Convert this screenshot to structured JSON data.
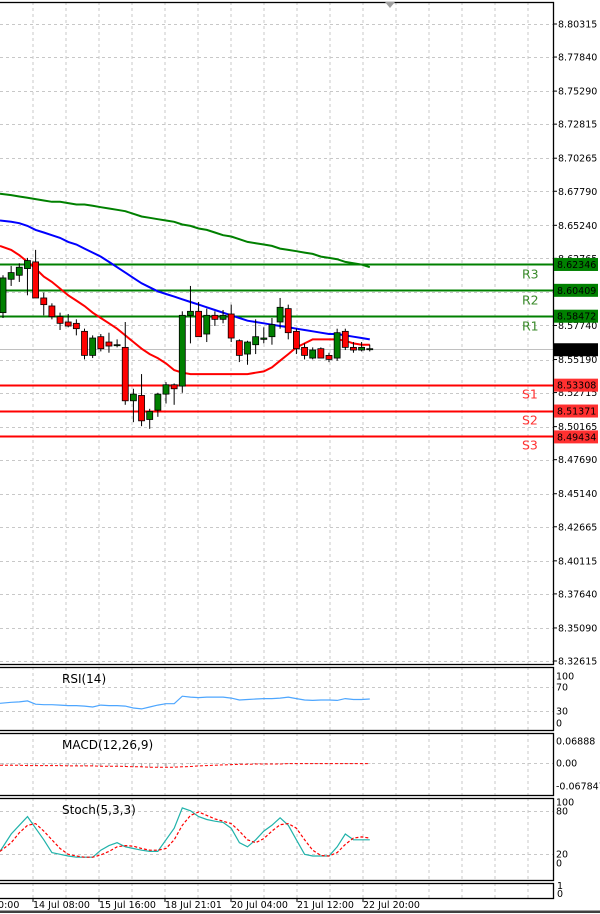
{
  "chart_data": {
    "type": "candlestick",
    "title": "",
    "layout": {
      "grid": true,
      "legend": "none"
    },
    "price_axis": {
      "ticks": [
        "8.80315",
        "8.77840",
        "8.75290",
        "8.72815",
        "8.70265",
        "8.67790",
        "8.65240",
        "8.62765",
        "8.60215",
        "8.57740",
        "8.55190",
        "8.52715",
        "8.50165",
        "8.47690",
        "8.45140",
        "8.42665",
        "8.40115",
        "8.37640",
        "8.35090",
        "8.32615"
      ],
      "range": [
        8.32615,
        8.80315
      ]
    },
    "time_axis": {
      "ticks": [
        "20:00",
        "14 Jul 08:00",
        "15 Jul 16:00",
        "18 Jul 21:01",
        "20 Jul 04:00",
        "21 Jul 12:00",
        "22 Jul 20:00"
      ]
    },
    "current_price": "8.55960",
    "levels": [
      {
        "name": "R3",
        "value": "8.62346",
        "type": "resistance",
        "color": "#008000"
      },
      {
        "name": "R2",
        "value": "8.60409",
        "type": "resistance",
        "color": "#008000"
      },
      {
        "name": "R1",
        "value": "8.58472",
        "type": "resistance",
        "color": "#008000"
      },
      {
        "name": "S1",
        "value": "8.53308",
        "type": "support",
        "color": "#ff0000"
      },
      {
        "name": "S2",
        "value": "8.51371",
        "type": "support",
        "color": "#ff0000"
      },
      {
        "name": "S3",
        "value": "8.49434",
        "type": "support",
        "color": "#ff0000"
      }
    ],
    "candles": [
      [
        8.587,
        8.615,
        8.583,
        8.613
      ],
      [
        8.612,
        8.622,
        8.607,
        8.617
      ],
      [
        8.615,
        8.624,
        8.61,
        8.621
      ],
      [
        8.62,
        8.628,
        8.6,
        8.626
      ],
      [
        8.625,
        8.634,
        8.598,
        8.598
      ],
      [
        8.598,
        8.602,
        8.585,
        8.593
      ],
      [
        8.592,
        8.594,
        8.582,
        8.584
      ],
      [
        8.584,
        8.587,
        8.574,
        8.579
      ],
      [
        8.58,
        8.586,
        8.576,
        8.577
      ],
      [
        8.579,
        8.582,
        8.57,
        8.575
      ],
      [
        8.573,
        8.575,
        8.552,
        8.555
      ],
      [
        8.555,
        8.57,
        8.553,
        8.568
      ],
      [
        8.569,
        8.571,
        8.558,
        8.56
      ],
      [
        8.565,
        8.572,
        8.557,
        8.562
      ],
      [
        8.563,
        8.567,
        8.561,
        8.563
      ],
      [
        8.561,
        8.58,
        8.518,
        8.521
      ],
      [
        8.521,
        8.53,
        8.505,
        8.526
      ],
      [
        8.525,
        8.541,
        8.502,
        8.506
      ],
      [
        8.507,
        8.515,
        8.5,
        8.513
      ],
      [
        8.514,
        8.527,
        8.509,
        8.526
      ],
      [
        8.526,
        8.535,
        8.519,
        8.533
      ],
      [
        8.533,
        8.534,
        8.518,
        8.53
      ],
      [
        8.532,
        8.588,
        8.527,
        8.585
      ],
      [
        8.585,
        8.607,
        8.564,
        8.588
      ],
      [
        8.588,
        8.595,
        8.569,
        8.569
      ],
      [
        8.571,
        8.59,
        8.565,
        8.585
      ],
      [
        8.585,
        8.588,
        8.577,
        8.582
      ],
      [
        8.582,
        8.589,
        8.579,
        8.585
      ],
      [
        8.586,
        8.593,
        8.565,
        8.568
      ],
      [
        8.566,
        8.567,
        8.55,
        8.555
      ],
      [
        8.556,
        8.566,
        8.548,
        8.565
      ],
      [
        8.563,
        8.582,
        8.556,
        8.569
      ],
      [
        8.567,
        8.576,
        8.564,
        8.568
      ],
      [
        8.569,
        8.583,
        8.563,
        8.578
      ],
      [
        8.58,
        8.598,
        8.575,
        8.591
      ],
      [
        8.59,
        8.593,
        8.567,
        8.572
      ],
      [
        8.573,
        8.575,
        8.556,
        8.56
      ],
      [
        8.561,
        8.564,
        8.552,
        8.555
      ],
      [
        8.553,
        8.561,
        8.552,
        8.559
      ],
      [
        8.56,
        8.561,
        8.553,
        8.553
      ],
      [
        8.555,
        8.557,
        8.55,
        8.552
      ],
      [
        8.553,
        8.575,
        8.551,
        8.572
      ],
      [
        8.573,
        8.575,
        8.559,
        8.561
      ],
      [
        8.561,
        8.565,
        8.557,
        8.559
      ],
      [
        8.559,
        8.565,
        8.558,
        8.561
      ],
      [
        8.56,
        8.563,
        8.558,
        8.56
      ]
    ],
    "ma_series": [
      {
        "name": "MA fast (red)",
        "color": "#ff0000",
        "values": [
          8.637,
          8.634,
          8.63,
          8.625,
          8.62,
          8.614,
          8.61,
          8.605,
          8.6,
          8.596,
          8.592,
          8.587,
          8.583,
          8.579,
          8.575,
          8.57,
          8.565,
          8.56,
          8.556,
          8.553,
          8.549,
          8.544,
          8.542,
          8.541,
          8.541,
          8.541,
          8.541,
          8.541,
          8.541,
          8.541,
          8.541,
          8.542,
          8.543,
          8.546,
          8.551,
          8.556,
          8.561,
          8.564,
          8.567,
          8.567,
          8.567,
          8.567,
          8.566,
          8.564,
          8.563,
          8.563
        ]
      },
      {
        "name": "MA medium (blue)",
        "color": "#0000ff",
        "values": [
          8.656,
          8.655,
          8.654,
          8.652,
          8.649,
          8.647,
          8.645,
          8.643,
          8.64,
          8.638,
          8.635,
          8.632,
          8.629,
          8.625,
          8.621,
          8.617,
          8.613,
          8.609,
          8.606,
          8.603,
          8.601,
          8.599,
          8.597,
          8.595,
          8.593,
          8.591,
          8.589,
          8.587,
          8.585,
          8.583,
          8.581,
          8.58,
          8.579,
          8.578,
          8.577,
          8.576,
          8.575,
          8.574,
          8.573,
          8.572,
          8.571,
          8.571,
          8.57,
          8.569,
          8.568,
          8.567
        ]
      },
      {
        "name": "MA slow (green)",
        "color": "#008000",
        "values": [
          8.676,
          8.675,
          8.674,
          8.673,
          8.672,
          8.671,
          8.67,
          8.67,
          8.669,
          8.668,
          8.668,
          8.667,
          8.666,
          8.665,
          8.664,
          8.663,
          8.661,
          8.659,
          8.658,
          8.657,
          8.656,
          8.655,
          8.653,
          8.652,
          8.65,
          8.649,
          8.647,
          8.645,
          8.644,
          8.642,
          8.64,
          8.639,
          8.638,
          8.637,
          8.635,
          8.634,
          8.633,
          8.632,
          8.631,
          8.629,
          8.628,
          8.627,
          8.625,
          8.624,
          8.623,
          8.621
        ]
      }
    ],
    "indicators": [
      {
        "name": "RSI(14)",
        "type": "line",
        "ticks": [
          "100",
          "70",
          "30",
          "0"
        ],
        "series": [
          {
            "name": "RSI",
            "color": "#4da6ff",
            "values": [
              42,
              44,
              45,
              47,
              40,
              39,
              39,
              38,
              37,
              37,
              36,
              34,
              38,
              37,
              37,
              36,
              32,
              30,
              34,
              38,
              41,
              41,
              57,
              55,
              54,
              55,
              55,
              55,
              53,
              49,
              50,
              51,
              52,
              52,
              53,
              55,
              52,
              49,
              48,
              49,
              49,
              48,
              52,
              50,
              50,
              51
            ]
          }
        ]
      },
      {
        "name": "MACD(12,26,9)",
        "type": "histogram+signal",
        "ticks": [
          "0.06888",
          "0.00",
          "-0.067847"
        ],
        "series": [
          {
            "name": "MACD histogram",
            "color": "#c0c0c0",
            "values": [
              -0.006,
              -0.007,
              -0.007,
              -0.007,
              -0.008,
              -0.008,
              -0.009,
              -0.009,
              -0.009,
              -0.009,
              -0.01,
              -0.01,
              -0.01,
              -0.01,
              -0.01,
              -0.012,
              -0.013,
              -0.014,
              -0.014,
              -0.013,
              -0.012,
              -0.011,
              -0.007,
              -0.004,
              -0.003,
              -0.002,
              -0.002,
              -0.001,
              -0.002,
              -0.003,
              -0.003,
              -0.002,
              -0.002,
              -0.001,
              0.0,
              -0.001,
              -0.002,
              -0.002,
              -0.002,
              -0.002,
              -0.003,
              -0.002,
              -0.002,
              -0.002,
              -0.002,
              -0.002
            ]
          },
          {
            "name": "Signal",
            "color": "#ff0000",
            "values": [
              -0.007,
              -0.007,
              -0.007,
              -0.008,
              -0.008,
              -0.008,
              -0.008,
              -0.008,
              -0.009,
              -0.009,
              -0.009,
              -0.009,
              -0.01,
              -0.01,
              -0.01,
              -0.011,
              -0.012,
              -0.012,
              -0.013,
              -0.013,
              -0.013,
              -0.013,
              -0.012,
              -0.011,
              -0.009,
              -0.008,
              -0.007,
              -0.006,
              -0.005,
              -0.004,
              -0.004,
              -0.003,
              -0.003,
              -0.003,
              -0.003,
              -0.002,
              -0.002,
              -0.002,
              -0.002,
              -0.002,
              -0.002,
              -0.002,
              -0.002,
              -0.002,
              -0.002,
              -0.002
            ]
          }
        ]
      },
      {
        "name": "Stoch(5,3,3)",
        "type": "line",
        "ticks": [
          "100",
          "80",
          "20",
          "0"
        ],
        "series": [
          {
            "name": "%K",
            "color": "#20b2aa",
            "values": [
              20,
              50,
              65,
              80,
              60,
              40,
              18,
              15,
              12,
              10,
              10,
              10,
              22,
              30,
              35,
              28,
              25,
              22,
              20,
              20,
              40,
              60,
              95,
              90,
              80,
              75,
              72,
              70,
              60,
              35,
              28,
              40,
              55,
              65,
              78,
              65,
              40,
              15,
              12,
              12,
              12,
              28,
              50,
              40,
              40,
              40
            ]
          },
          {
            "name": "%D",
            "color": "#ff0000",
            "values": [
              20,
              35,
              52,
              65,
              68,
              55,
              40,
              25,
              15,
              12,
              10,
              10,
              14,
              20,
              28,
              30,
              29,
              25,
              22,
              22,
              25,
              40,
              65,
              82,
              88,
              82,
              76,
              72,
              68,
              55,
              40,
              35,
              42,
              55,
              66,
              68,
              60,
              40,
              22,
              13,
              12,
              18,
              32,
              43,
              45,
              43
            ]
          }
        ]
      }
    ]
  }
}
